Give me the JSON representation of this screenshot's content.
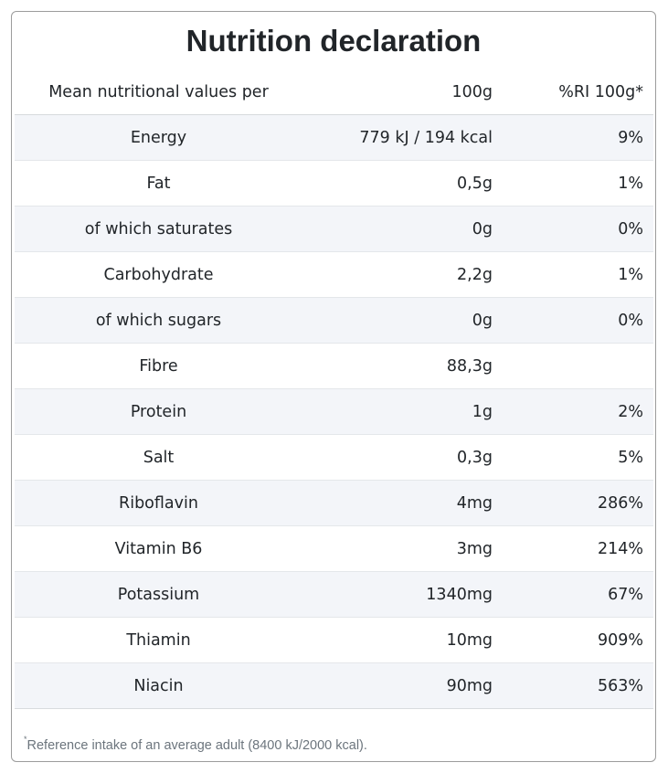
{
  "title": "Nutrition declaration",
  "header": {
    "name": "Mean nutritional values per",
    "value": "100g",
    "ri": "%RI 100g*"
  },
  "rows": [
    {
      "name": "Energy",
      "value": "779 kJ / 194 kcal",
      "ri": "9%"
    },
    {
      "name": "Fat",
      "value": "0,5g",
      "ri": "1%"
    },
    {
      "name": "of which saturates",
      "value": "0g",
      "ri": "0%"
    },
    {
      "name": "Carbohydrate",
      "value": "2,2g",
      "ri": "1%"
    },
    {
      "name": "of which sugars",
      "value": "0g",
      "ri": "0%"
    },
    {
      "name": "Fibre",
      "value": "88,3g",
      "ri": ""
    },
    {
      "name": "Protein",
      "value": "1g",
      "ri": "2%"
    },
    {
      "name": "Salt",
      "value": "0,3g",
      "ri": "5%"
    },
    {
      "name": "Riboflavin",
      "value": "4mg",
      "ri": "286%"
    },
    {
      "name": "Vitamin B6",
      "value": "3mg",
      "ri": "214%"
    },
    {
      "name": "Potassium",
      "value": "1340mg",
      "ri": "67%"
    },
    {
      "name": "Thiamin",
      "value": "10mg",
      "ri": "909%"
    },
    {
      "name": "Niacin",
      "value": "90mg",
      "ri": "563%"
    }
  ],
  "footnote": {
    "marker": "*",
    "text": "Reference intake of an average adult (8400 kJ/2000 kcal)."
  }
}
